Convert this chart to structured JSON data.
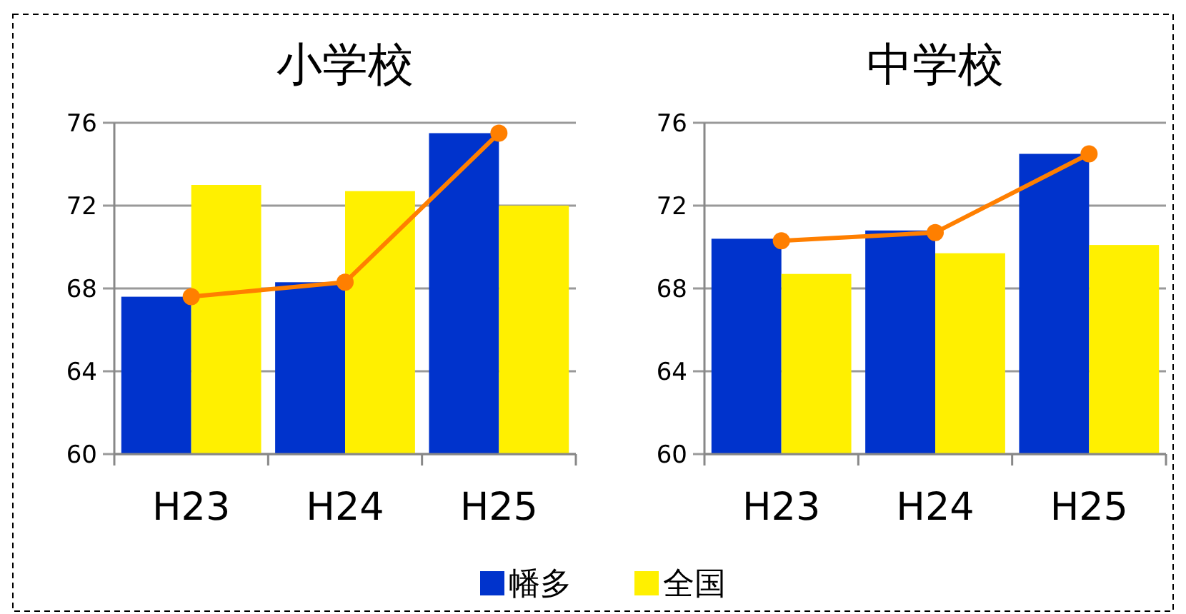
{
  "chart_data": [
    {
      "type": "bar",
      "title": "小学校",
      "categories": [
        "H23",
        "H24",
        "H25"
      ],
      "series": [
        {
          "name": "幡多",
          "color": "#0033cc",
          "values": [
            67.6,
            68.3,
            75.5
          ]
        },
        {
          "name": "全国",
          "color": "#fff000",
          "values": [
            73.0,
            72.7,
            72.0
          ]
        },
        {
          "type": "line",
          "color": "#ff7f00",
          "values": [
            67.6,
            68.3,
            75.5
          ],
          "marker": "circle"
        }
      ],
      "ylim": [
        60,
        76
      ],
      "yticks": [
        60,
        64,
        68,
        72,
        76
      ],
      "grid": "y",
      "legend": "bottom"
    },
    {
      "type": "bar",
      "title": "中学校",
      "categories": [
        "H23",
        "H24",
        "H25"
      ],
      "series": [
        {
          "color": "#0033cc",
          "values": [
            70.4,
            70.8,
            74.5
          ]
        },
        {
          "color": "#fff000",
          "values": [
            68.7,
            69.7,
            70.1
          ]
        },
        {
          "type": "line",
          "color": "#ff7f00",
          "values": [
            70.3,
            70.7,
            74.5
          ],
          "marker": "circle"
        }
      ],
      "ylim": [
        60,
        76
      ],
      "yticks": [
        60,
        64,
        68,
        72,
        76
      ],
      "grid": "y"
    }
  ]
}
